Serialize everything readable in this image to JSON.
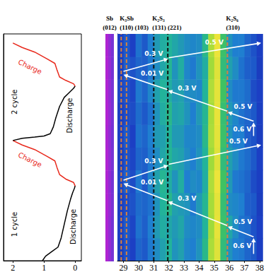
{
  "chart_data": [
    {
      "type": "line",
      "xlim": [
        2.3,
        -0.2
      ],
      "xticks": [
        2,
        1,
        0
      ],
      "ylim": [
        0,
        10
      ],
      "tick_labels": "x",
      "series": [
        {
          "color": "#000000",
          "x": [
            1.05,
            0.95,
            0.75,
            0.55,
            0.45,
            0.35,
            0.25,
            0.15,
            0.08,
            0.02,
            0.0
          ],
          "values": [
            0,
            0.2,
            0.4,
            0.6,
            1.0,
            1.6,
            2.2,
            2.7,
            3.0,
            3.2,
            3.3
          ]
        },
        {
          "color": "#e8291c",
          "x": [
            0.0,
            0.05,
            0.3,
            0.5,
            0.58,
            0.65,
            0.9,
            1.3,
            1.7,
            2.0
          ],
          "values": [
            3.3,
            3.45,
            3.6,
            3.8,
            4.1,
            4.4,
            4.6,
            4.9,
            5.1,
            5.3
          ]
        },
        {
          "color": "#000000",
          "x": [
            2.0,
            1.7,
            1.3,
            1.0,
            0.8,
            0.7,
            0.62,
            0.5,
            0.35,
            0.2,
            0.05,
            0.0
          ],
          "values": [
            5.3,
            5.4,
            5.45,
            5.5,
            5.6,
            5.9,
            6.3,
            6.8,
            7.2,
            7.4,
            7.6,
            7.7
          ]
        },
        {
          "color": "#e8291c",
          "x": [
            0.0,
            0.05,
            0.3,
            0.5,
            0.58,
            0.65,
            0.9,
            1.3,
            1.7,
            2.0
          ],
          "values": [
            7.7,
            7.8,
            7.95,
            8.1,
            8.4,
            8.7,
            8.9,
            9.2,
            9.4,
            9.6
          ]
        }
      ],
      "curve_labels": [
        {
          "text": "Charge",
          "x": 1.45,
          "y": 4.45,
          "color": "#e8291c"
        },
        {
          "text": "Charge",
          "x": 1.45,
          "y": 8.55,
          "color": "#e8291c"
        }
      ],
      "side_labels": [
        {
          "text": "Discharge",
          "x": 0.06,
          "y": 1.5,
          "color": "#000000"
        },
        {
          "text": "Discharge",
          "x": 0.18,
          "y": 6.4,
          "color": "#000000"
        },
        {
          "text": "1 cycle",
          "x": 1.95,
          "y": 1.6,
          "color": "#000000"
        },
        {
          "text": "2 cycle",
          "x": 1.95,
          "y": 7.0,
          "color": "#000000"
        }
      ]
    },
    {
      "type": "heatmap",
      "label": "Sb",
      "hkl": "(012)",
      "color": "#c21fd0",
      "ylim": [
        0,
        10
      ],
      "tick_labels": false,
      "intensity_range": [
        0,
        1
      ],
      "y_edges": [
        0,
        1,
        2,
        3,
        4,
        5,
        6,
        7,
        8,
        9,
        10
      ],
      "cells": [
        [
          0.85,
          0.62,
          0.38
        ],
        [
          0.83,
          0.6,
          0.36
        ],
        [
          0.86,
          0.63,
          0.4
        ],
        [
          0.84,
          0.61,
          0.37
        ],
        [
          0.85,
          0.62,
          0.39
        ],
        [
          0.82,
          0.6,
          0.36
        ],
        [
          0.86,
          0.64,
          0.4
        ],
        [
          0.84,
          0.61,
          0.38
        ],
        [
          0.85,
          0.63,
          0.37
        ],
        [
          0.83,
          0.6,
          0.39
        ]
      ]
    },
    {
      "type": "heatmap",
      "xlim": [
        28.6,
        38.2
      ],
      "xticks": [
        29,
        30,
        31,
        32,
        33,
        34,
        35,
        36,
        37,
        38
      ],
      "ylim": [
        0,
        10
      ],
      "tick_labels": "x",
      "intensity_range": [
        0,
        1
      ],
      "x_edges": [
        28.6,
        29.0,
        29.4,
        29.8,
        30.2,
        30.6,
        31.0,
        31.4,
        31.8,
        32.2,
        32.6,
        33.0,
        33.4,
        33.8,
        34.2,
        34.6,
        35.0,
        35.4,
        35.8,
        36.2,
        36.6,
        37.0,
        37.4,
        37.8,
        38.2
      ],
      "y_edges": [
        0,
        1,
        2,
        3,
        4,
        5,
        6,
        7,
        8,
        9,
        10
      ],
      "cells": [
        [
          0.3,
          0.35,
          0.32,
          0.38,
          0.36,
          0.41,
          0.44,
          0.47,
          0.5,
          0.45,
          0.47,
          0.43,
          0.42,
          0.45,
          0.52,
          0.76,
          0.87,
          0.54,
          0.45,
          0.42,
          0.41,
          0.38,
          0.36,
          0.31
        ],
        [
          0.32,
          0.36,
          0.33,
          0.4,
          0.37,
          0.42,
          0.46,
          0.49,
          0.48,
          0.46,
          0.48,
          0.44,
          0.43,
          0.44,
          0.5,
          0.74,
          0.89,
          0.56,
          0.48,
          0.44,
          0.4,
          0.39,
          0.35,
          0.32
        ],
        [
          0.31,
          0.34,
          0.35,
          0.39,
          0.38,
          0.4,
          0.45,
          0.5,
          0.52,
          0.47,
          0.46,
          0.45,
          0.41,
          0.46,
          0.51,
          0.75,
          0.88,
          0.55,
          0.44,
          0.43,
          0.42,
          0.37,
          0.36,
          0.3
        ],
        [
          0.33,
          0.37,
          0.34,
          0.41,
          0.36,
          0.43,
          0.47,
          0.51,
          0.49,
          0.45,
          0.49,
          0.42,
          0.44,
          0.43,
          0.49,
          0.77,
          0.9,
          0.57,
          0.46,
          0.41,
          0.4,
          0.38,
          0.34,
          0.31
        ],
        [
          0.3,
          0.35,
          0.33,
          0.38,
          0.37,
          0.41,
          0.44,
          0.48,
          0.51,
          0.48,
          0.47,
          0.44,
          0.42,
          0.45,
          0.5,
          0.74,
          0.87,
          0.54,
          0.47,
          0.44,
          0.41,
          0.39,
          0.36,
          0.32
        ],
        [
          0.32,
          0.36,
          0.32,
          0.4,
          0.38,
          0.42,
          0.46,
          0.47,
          0.5,
          0.46,
          0.46,
          0.43,
          0.43,
          0.44,
          0.52,
          0.76,
          0.88,
          0.56,
          0.45,
          0.42,
          0.42,
          0.37,
          0.35,
          0.3
        ],
        [
          0.31,
          0.34,
          0.34,
          0.39,
          0.36,
          0.4,
          0.45,
          0.49,
          0.52,
          0.47,
          0.48,
          0.45,
          0.42,
          0.46,
          0.51,
          0.75,
          0.89,
          0.55,
          0.46,
          0.43,
          0.4,
          0.38,
          0.36,
          0.31
        ],
        [
          0.33,
          0.35,
          0.33,
          0.41,
          0.38,
          0.43,
          0.47,
          0.5,
          0.49,
          0.46,
          0.47,
          0.44,
          0.44,
          0.43,
          0.5,
          0.77,
          0.88,
          0.57,
          0.44,
          0.41,
          0.41,
          0.39,
          0.34,
          0.32
        ],
        [
          0.3,
          0.37,
          0.35,
          0.38,
          0.37,
          0.41,
          0.44,
          0.48,
          0.51,
          0.45,
          0.49,
          0.43,
          0.41,
          0.45,
          0.49,
          0.74,
          0.87,
          0.54,
          0.47,
          0.44,
          0.4,
          0.37,
          0.36,
          0.3
        ],
        [
          0.32,
          0.36,
          0.32,
          0.4,
          0.36,
          0.42,
          0.46,
          0.49,
          0.5,
          0.48,
          0.46,
          0.44,
          0.43,
          0.44,
          0.52,
          0.76,
          0.9,
          0.56,
          0.45,
          0.42,
          0.42,
          0.38,
          0.35,
          0.31
        ]
      ],
      "phases": [
        {
          "name": "K₃Sb",
          "color": "#d9823b",
          "peaks": [
            {
              "hkl": "(110)",
              "x": 28.85
            },
            {
              "hkl": "(103)",
              "x": 29.2
            }
          ]
        },
        {
          "name": "K₂S₃",
          "color": "#111111",
          "peaks": [
            {
              "hkl": "(131)",
              "x": 31.0
            },
            {
              "hkl": "(221)",
              "x": 31.93
            }
          ]
        },
        {
          "name": "K₂S₆",
          "color": "#d9823b",
          "peaks": [
            {
              "hkl": "(310)",
              "x": 35.87
            }
          ]
        }
      ],
      "arrows": [
        {
          "from": [
            37.6,
            0.3
          ],
          "to": [
            37.6,
            1.0
          ],
          "label": "0.6 V",
          "label_at": [
            36.85,
            0.65
          ]
        },
        {
          "from": [
            37.6,
            1.05
          ],
          "to": [
            35.9,
            1.5
          ],
          "label": "0.5 V",
          "label_at": [
            36.9,
            1.7
          ]
        },
        {
          "from": [
            35.85,
            1.55
          ],
          "to": [
            31.95,
            2.6
          ],
          "label": "0.3 V",
          "label_at": [
            33.2,
            2.75
          ]
        },
        {
          "from": [
            31.9,
            2.65
          ],
          "to": [
            29.0,
            3.4
          ],
          "label": "0.01 V",
          "label_at": [
            30.9,
            3.45
          ]
        },
        {
          "from": [
            29.0,
            3.55
          ],
          "to": [
            31.95,
            4.2
          ],
          "label": "0.3 V",
          "label_at": [
            31.0,
            4.4
          ]
        },
        {
          "from": [
            32.0,
            4.25
          ],
          "to": [
            38.1,
            5.1
          ],
          "label": "0.5 V",
          "label_at": [
            36.6,
            5.25
          ]
        },
        {
          "from": [
            37.6,
            5.5
          ],
          "to": [
            37.6,
            6.1
          ],
          "label": "0.6 V",
          "label_at": [
            36.85,
            5.8
          ]
        },
        {
          "from": [
            37.6,
            6.15
          ],
          "to": [
            35.9,
            6.55
          ],
          "label": "0.5 V",
          "label_at": [
            36.9,
            6.78
          ]
        },
        {
          "from": [
            35.85,
            6.6
          ],
          "to": [
            31.95,
            7.5
          ],
          "label": "0.3 V",
          "label_at": [
            33.2,
            7.6
          ]
        },
        {
          "from": [
            31.9,
            7.55
          ],
          "to": [
            29.0,
            8.2
          ],
          "label": "0.01 V",
          "label_at": [
            30.9,
            8.25
          ]
        },
        {
          "from": [
            29.0,
            8.35
          ],
          "to": [
            31.95,
            8.9
          ],
          "label": "0.3 V",
          "label_at": [
            31.0,
            9.12
          ]
        },
        {
          "from": [
            32.0,
            8.95
          ],
          "to": [
            38.1,
            9.6
          ],
          "label": "0.5 V",
          "label_at": [
            35.0,
            9.62
          ]
        }
      ]
    }
  ]
}
